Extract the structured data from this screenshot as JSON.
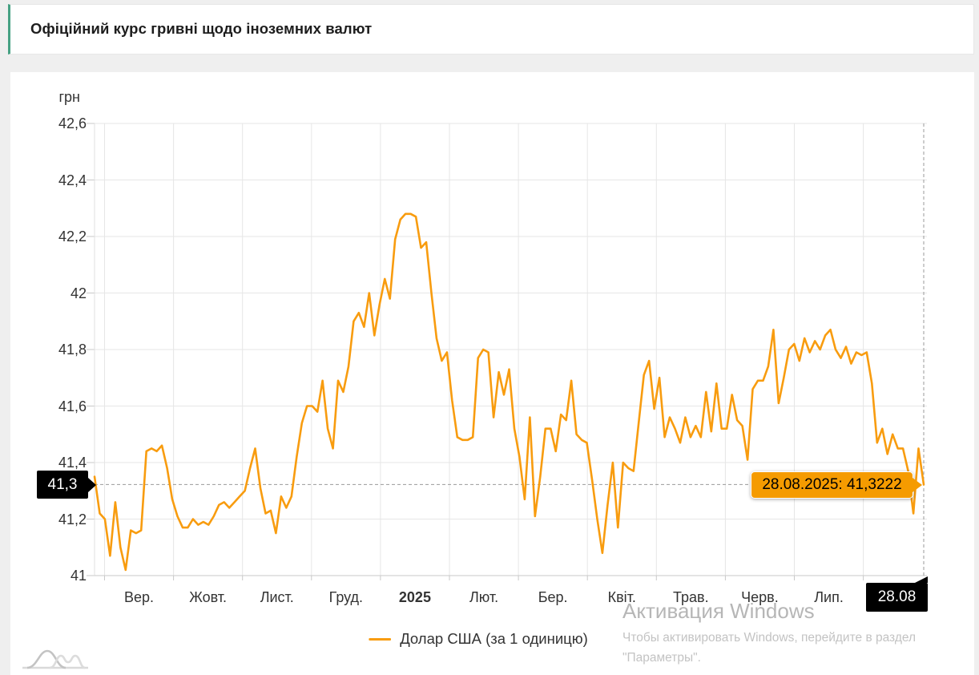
{
  "header": {
    "title": "Офіційний курс гривні щодо іноземних валют"
  },
  "chart": {
    "unit_label": "грн",
    "legend_label": "Долар США (за 1 одиницю)",
    "crosshair": {
      "y_label": "41,3",
      "x_label": "28.08",
      "tooltip_text": "28.08.2025: 41,3222"
    },
    "colors": {
      "line": "#f89c0f",
      "tooltip_bg": "#f59b00",
      "accent_green": "#46a183",
      "grid": "#e6e6e6",
      "axis": "#c9c9c9",
      "crosshair": "#999999"
    }
  },
  "watermark": {
    "title": "Активация Windows",
    "line1": "Чтобы активировать Windows, перейдите в раздел",
    "line2": "\"Параметры\"."
  },
  "chart_data": {
    "type": "line",
    "title": "Офіційний курс гривні щодо іноземних валют",
    "xlabel": "",
    "ylabel": "грн",
    "ylim": [
      41,
      42.6
    ],
    "grid": true,
    "legend_position": "bottom-center",
    "y_ticks": [
      "42,6",
      "42,4",
      "42,2",
      "42",
      "41,8",
      "41,6",
      "41,4",
      "41,2",
      "41"
    ],
    "y_tick_values": [
      42.6,
      42.4,
      42.2,
      42.0,
      41.8,
      41.6,
      41.4,
      41.2,
      41.0
    ],
    "x_ticks": [
      "Вер.",
      "Жовт.",
      "Лист.",
      "Груд.",
      "2025",
      "Лют.",
      "Бер.",
      "Квіт.",
      "Трав.",
      "Черв.",
      "Лип."
    ],
    "x_start": "29.08.2024",
    "x_end": "28.08.2025",
    "highlight_point": {
      "date": "28.08.2025",
      "value": 41.3222
    },
    "series": [
      {
        "name": "Долар США (за 1 одиницю)",
        "color": "#f89c0f",
        "values": [
          41.35,
          41.22,
          41.2,
          41.07,
          41.26,
          41.1,
          41.02,
          41.16,
          41.15,
          41.16,
          41.44,
          41.45,
          41.44,
          41.46,
          41.38,
          41.27,
          41.21,
          41.17,
          41.17,
          41.2,
          41.18,
          41.19,
          41.18,
          41.21,
          41.25,
          41.26,
          41.24,
          41.26,
          41.28,
          41.3,
          41.38,
          41.45,
          41.31,
          41.22,
          41.23,
          41.15,
          41.28,
          41.24,
          41.28,
          41.42,
          41.54,
          41.6,
          41.6,
          41.58,
          41.69,
          41.52,
          41.45,
          41.69,
          41.65,
          41.74,
          41.9,
          41.93,
          41.88,
          42.0,
          41.85,
          41.96,
          42.05,
          41.98,
          42.19,
          42.26,
          42.28,
          42.28,
          42.27,
          42.16,
          42.18,
          42.0,
          41.84,
          41.76,
          41.79,
          41.62,
          41.49,
          41.48,
          41.48,
          41.49,
          41.77,
          41.8,
          41.79,
          41.56,
          41.72,
          41.64,
          41.73,
          41.52,
          41.42,
          41.27,
          41.56,
          41.21,
          41.35,
          41.52,
          41.52,
          41.44,
          41.57,
          41.55,
          41.69,
          41.5,
          41.48,
          41.47,
          41.34,
          41.2,
          41.08,
          41.25,
          41.4,
          41.17,
          41.4,
          41.38,
          41.37,
          41.54,
          41.71,
          41.76,
          41.59,
          41.7,
          41.49,
          41.56,
          41.52,
          41.47,
          41.56,
          41.49,
          41.53,
          41.49,
          41.65,
          41.51,
          41.68,
          41.52,
          41.52,
          41.64,
          41.55,
          41.53,
          41.41,
          41.66,
          41.69,
          41.69,
          41.74,
          41.87,
          41.61,
          41.7,
          41.8,
          41.82,
          41.76,
          41.84,
          41.79,
          41.83,
          41.8,
          41.85,
          41.87,
          41.8,
          41.77,
          41.81,
          41.75,
          41.79,
          41.78,
          41.79,
          41.68,
          41.47,
          41.52,
          41.43,
          41.5,
          41.45,
          41.45,
          41.37,
          41.22,
          41.45,
          41.3222
        ]
      }
    ]
  }
}
